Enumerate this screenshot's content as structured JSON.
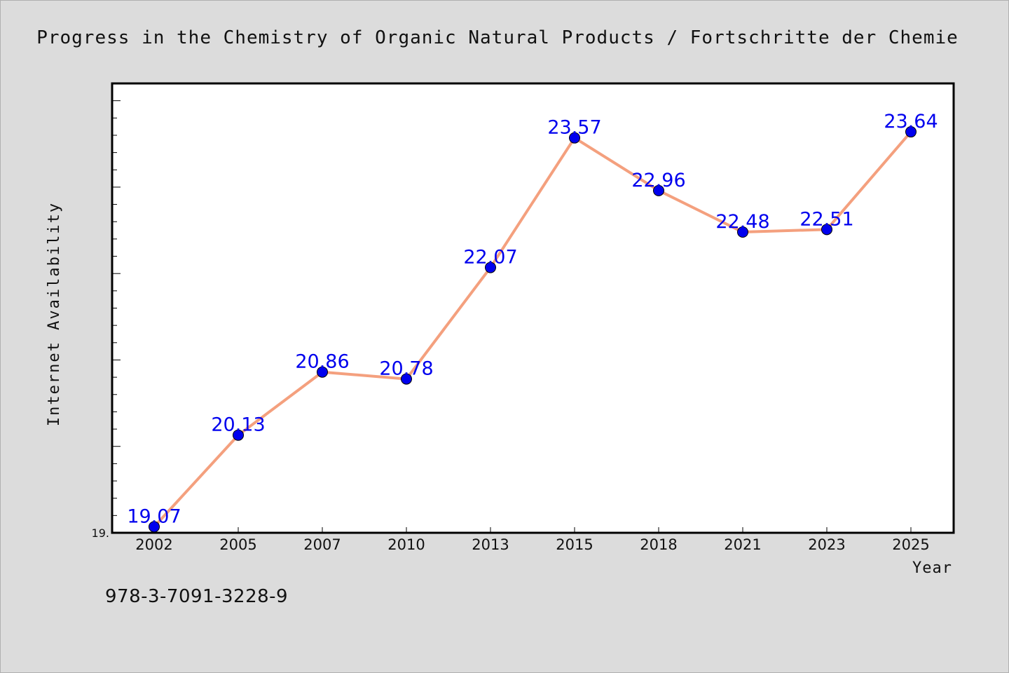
{
  "chart_data": {
    "type": "line",
    "title": "Progress in the Chemistry of Organic Natural Products / Fortschritte der Chemie",
    "xlabel": "Year",
    "ylabel": "Internet Availability",
    "categories": [
      "2002",
      "2005",
      "2007",
      "2010",
      "2013",
      "2015",
      "2018",
      "2021",
      "2023",
      "2025"
    ],
    "series": [
      {
        "values": [
          19.07,
          20.13,
          20.86,
          20.78,
          22.07,
          23.57,
          22.96,
          22.48,
          22.51,
          23.64
        ]
      }
    ],
    "data_labels": [
      "19.07",
      "20.13",
      "20.86",
      "20.78",
      "22.07",
      "23.57",
      "22.96",
      "22.48",
      "22.51",
      "23.64"
    ],
    "y_tick_label": "19.",
    "ylim": [
      19.0,
      24.2
    ],
    "grid": false,
    "legend": "none",
    "colors": {
      "line": "#f4a07e",
      "marker": "#0000ee",
      "label": "#0000ee"
    }
  },
  "footer": {
    "isbn": "978-3-7091-3228-9"
  }
}
